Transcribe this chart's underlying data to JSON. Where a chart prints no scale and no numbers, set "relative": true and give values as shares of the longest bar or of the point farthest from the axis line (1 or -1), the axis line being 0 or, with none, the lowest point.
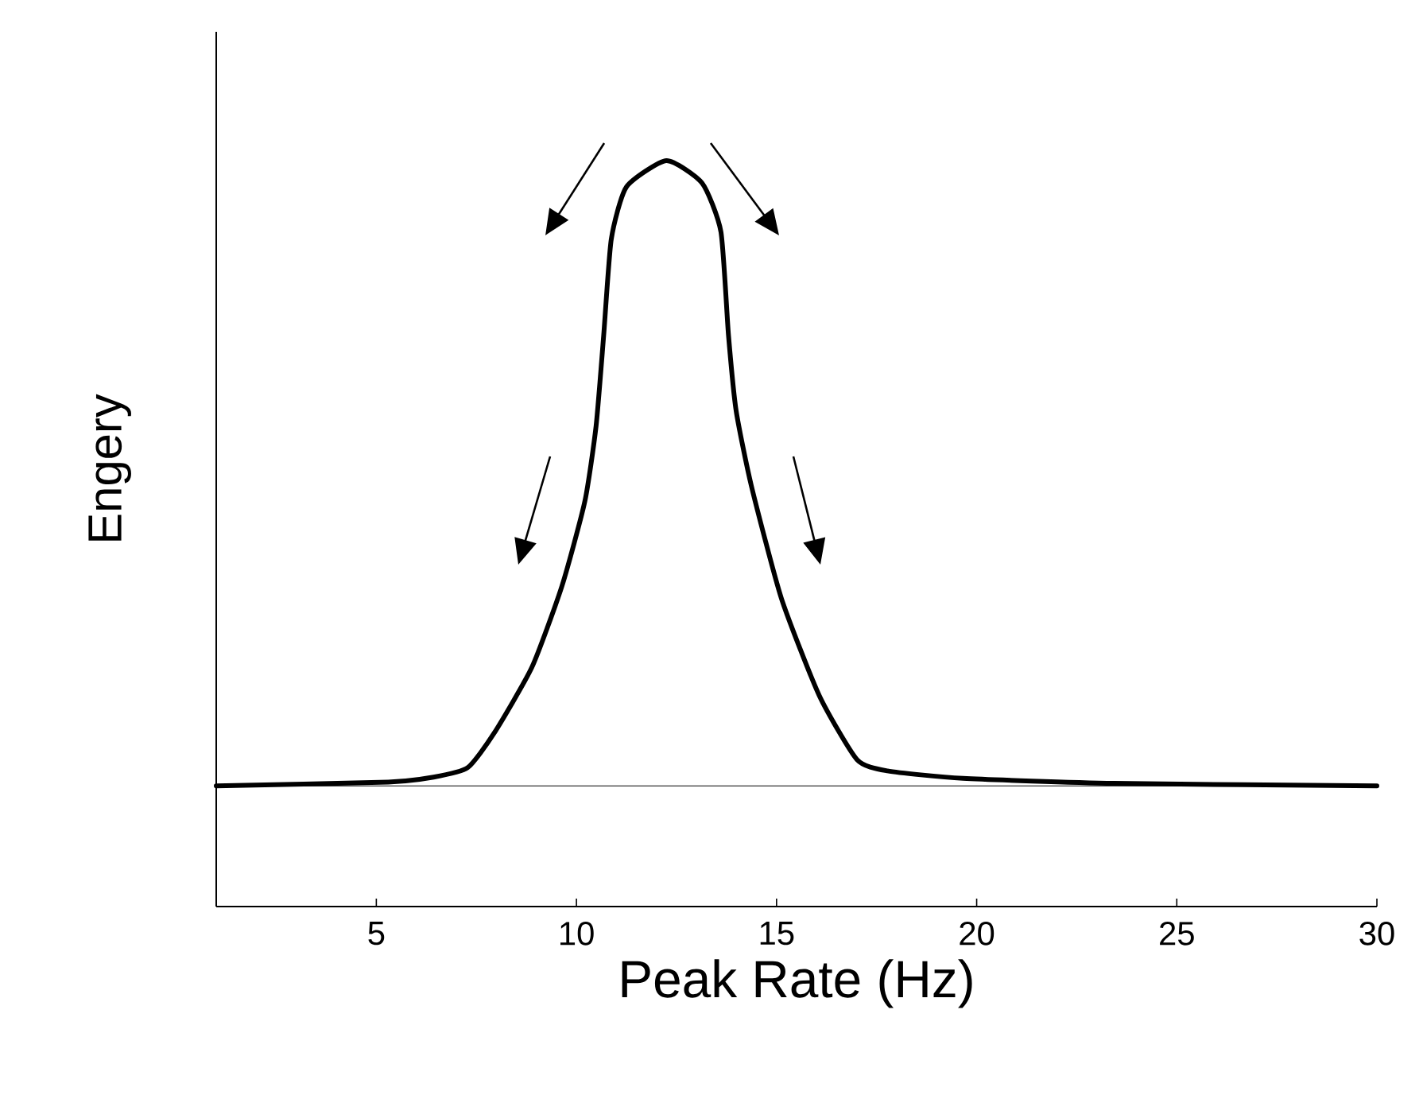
{
  "chart_data": {
    "type": "line",
    "relative": true,
    "xlabel": "Peak Rate (Hz)",
    "ylabel": "Engery",
    "xlim": [
      1,
      30
    ],
    "xticks": [
      5,
      10,
      15,
      20,
      25,
      30
    ],
    "x": [
      1,
      5.3,
      6.43,
      7.28,
      7.94,
      8.89,
      9.64,
      10.21,
      10.49,
      10.68,
      10.87,
      11.25,
      12.25,
      13.14,
      13.61,
      13.8,
      13.99,
      14.37,
      15.12,
      16.07,
      17.01,
      17.77,
      19.66,
      23.44,
      30
    ],
    "series": [
      {
        "color": "#000000",
        "values": [
          0,
          0.006,
          0.014,
          0.029,
          0.084,
          0.19,
          0.32,
          0.455,
          0.575,
          0.72,
          0.874,
          0.958,
          1.0,
          0.964,
          0.886,
          0.72,
          0.6,
          0.48,
          0.3,
          0.144,
          0.042,
          0.024,
          0.012,
          0.004,
          0
        ]
      }
    ],
    "ref_lines": [
      {
        "axis": "y",
        "value": 0,
        "color": "#000000"
      }
    ]
  }
}
